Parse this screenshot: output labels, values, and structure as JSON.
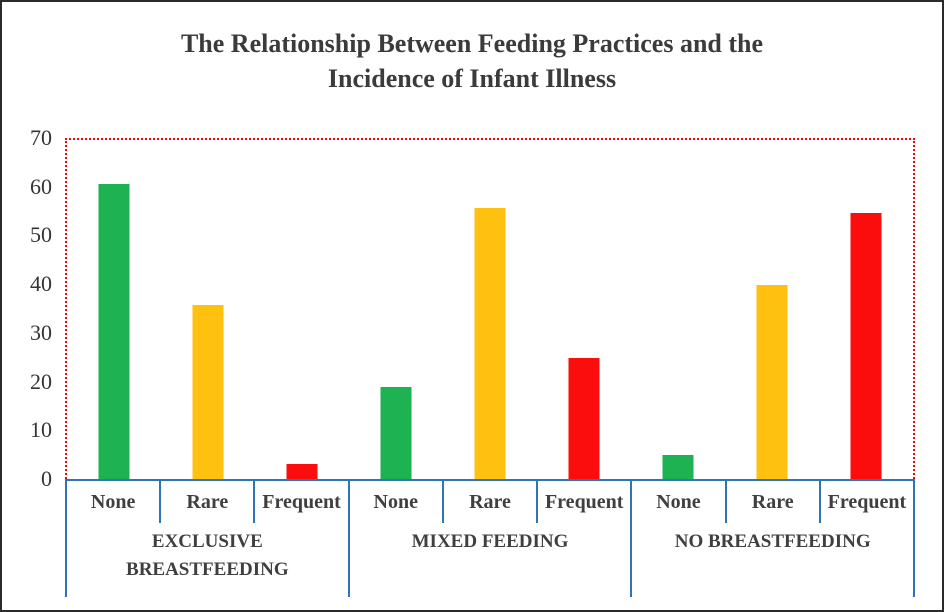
{
  "window": {
    "background": "#FFFFFF",
    "border_color": "#2B2B2B"
  },
  "chart_data": {
    "type": "bar",
    "title": "The Relationship Between Feeding Practices and the Incidence of Infant Illness",
    "title_lines": [
      "The Relationship Between Feeding Practices and the",
      "Incidence of Infant Illness"
    ],
    "xlabel": "",
    "ylabel": "",
    "ylim": [
      0,
      70
    ],
    "yticks": [
      70,
      60,
      50,
      40,
      30,
      20,
      10,
      0
    ],
    "gridlines": false,
    "legend_position": "none",
    "categories_per_group": [
      "None",
      "Rare",
      "Frequent"
    ],
    "groups": [
      {
        "label": "EXCLUSIVE BREASTFEEDING",
        "categories": [
          "None",
          "Rare",
          "Frequent"
        ],
        "values": [
          61,
          36,
          3
        ]
      },
      {
        "label": "MIXED FEEDING",
        "categories": [
          "None",
          "Rare",
          "Frequent"
        ],
        "values": [
          19,
          56,
          25
        ]
      },
      {
        "label": "NO BREASTFEEDING",
        "categories": [
          "None",
          "Rare",
          "Frequent"
        ],
        "values": [
          5,
          40,
          55
        ]
      }
    ],
    "series": [
      {
        "name": "None",
        "color": "#1FB253",
        "values": [
          61,
          19,
          5
        ]
      },
      {
        "name": "Rare",
        "color": "#FFC110",
        "values": [
          36,
          56,
          40
        ]
      },
      {
        "name": "Frequent",
        "color": "#FB0D0D",
        "values": [
          3,
          25,
          55
        ]
      }
    ],
    "colors": {
      "bar_none_green": "#1FB253",
      "bar_rare_yellow": "#FFC110",
      "bar_frequent_red": "#FB0D0D",
      "axis_blue": "#2E75B6",
      "plot_border_red": "#FF0000",
      "text": "#3F3F3F"
    }
  }
}
